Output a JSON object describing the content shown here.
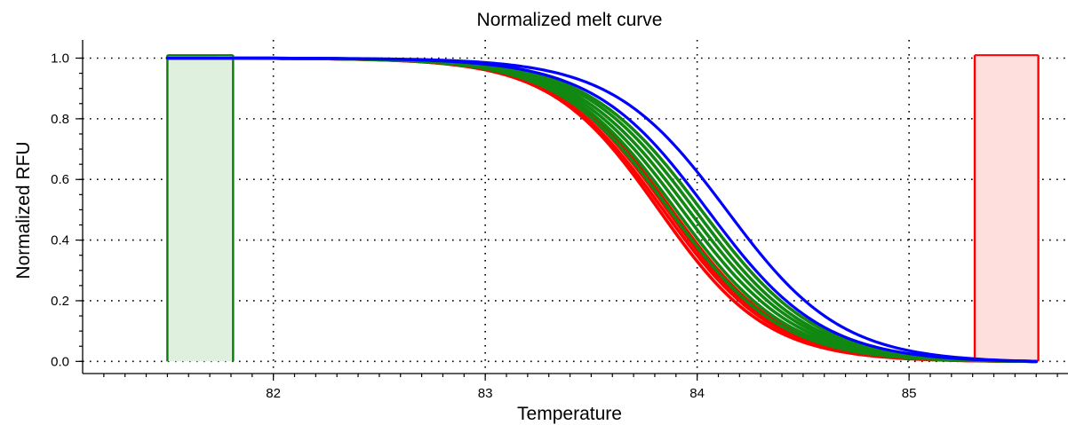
{
  "chart_data": {
    "type": "line",
    "title": "Normalized melt curve",
    "xlabel": "Temperature",
    "ylabel": "Normalized RFU",
    "xlim": [
      81.1,
      85.75
    ],
    "ylim": [
      -0.04,
      1.06
    ],
    "x_ticks": [
      {
        "value": 82,
        "label": "82"
      },
      {
        "value": 83,
        "label": "83"
      },
      {
        "value": 84,
        "label": "84"
      },
      {
        "value": 85,
        "label": "85"
      }
    ],
    "y_ticks": [
      {
        "value": 0.0,
        "label": "0.0"
      },
      {
        "value": 0.2,
        "label": "0.2"
      },
      {
        "value": 0.4,
        "label": "0.4"
      },
      {
        "value": 0.6,
        "label": "0.6"
      },
      {
        "value": 0.8,
        "label": "0.8"
      },
      {
        "value": 1.0,
        "label": "1.0"
      }
    ],
    "grid": true,
    "regions": [
      {
        "color": "#0a7a0a",
        "fill": "#dff0df",
        "x_start": 81.5,
        "x_end": 81.81,
        "y_start": 0.0,
        "y_end": 1.01
      },
      {
        "color": "#ff0000",
        "fill": "#ffdede",
        "x_start": 85.31,
        "x_end": 85.61,
        "y_start": 0.0,
        "y_end": 1.01
      }
    ],
    "series_groups": [
      {
        "color": "#ff0000",
        "curves": [
          {
            "tm": 83.82,
            "w": 0.255
          },
          {
            "tm": 83.84,
            "w": 0.26
          },
          {
            "tm": 83.86,
            "w": 0.258
          },
          {
            "tm": 83.88,
            "w": 0.262
          }
        ]
      },
      {
        "color": "#118811",
        "curves": [
          {
            "tm": 83.87,
            "w": 0.262
          },
          {
            "tm": 83.9,
            "w": 0.265
          },
          {
            "tm": 83.93,
            "w": 0.268
          },
          {
            "tm": 83.96,
            "w": 0.27
          },
          {
            "tm": 83.99,
            "w": 0.27
          },
          {
            "tm": 84.02,
            "w": 0.272
          }
        ]
      },
      {
        "color": "#0000ff",
        "curves": [
          {
            "tm": 84.05,
            "w": 0.27
          },
          {
            "tm": 84.14,
            "w": 0.27
          }
        ]
      }
    ],
    "x": [
      81.5,
      81.6,
      81.7,
      81.8,
      81.9,
      82.0,
      82.1,
      82.2,
      82.3,
      82.4,
      82.5,
      82.6,
      82.7,
      82.8,
      82.9,
      83.0,
      83.1,
      83.2,
      83.3,
      83.4,
      83.5,
      83.6,
      83.7,
      83.8,
      83.9,
      84.0,
      84.1,
      84.2,
      84.3,
      84.4,
      84.5,
      84.6,
      84.7,
      84.8,
      84.9,
      85.0,
      85.1,
      85.2,
      85.3,
      85.4,
      85.5,
      85.6
    ]
  }
}
